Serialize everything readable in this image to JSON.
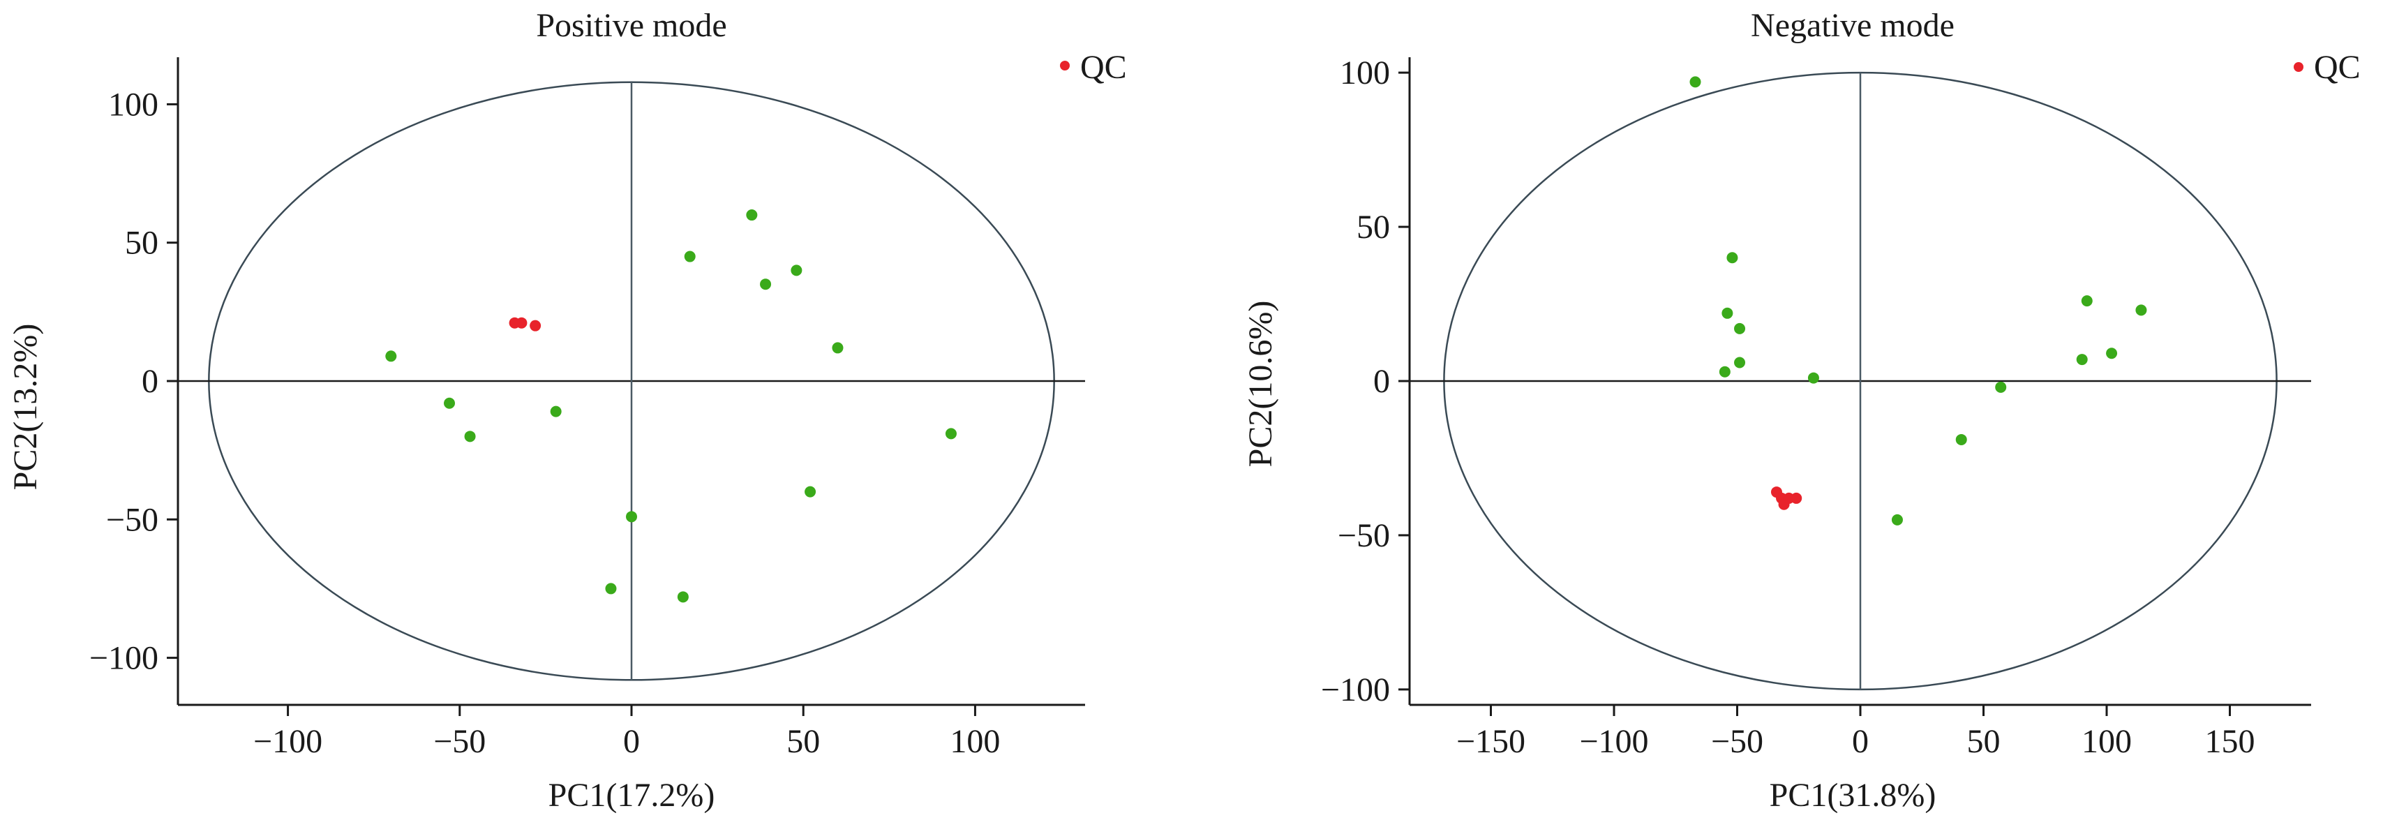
{
  "colors": {
    "qc": "#e8232b",
    "sample": "#3aaa1a",
    "axis": "#1a1a1a",
    "ellipse": "#3a4a55",
    "crosshair": "#4a5a65"
  },
  "chart_data": [
    {
      "type": "scatter",
      "title": "Positive mode",
      "xlabel": "PC1(17.2%)",
      "ylabel": "PC2(13.2%)",
      "xlim": [
        -132,
        132
      ],
      "ylim": [
        -117,
        117
      ],
      "xticks": [
        -100,
        -50,
        0,
        50,
        100
      ],
      "yticks": [
        -100,
        -50,
        0,
        50,
        100
      ],
      "xtick_labels": [
        "−100",
        "−50",
        "0",
        "50",
        "100"
      ],
      "ytick_labels": [
        "−100",
        "−50",
        "0",
        "50",
        "100"
      ],
      "legend": {
        "label": "QC",
        "placement": "top-right"
      },
      "ellipse": {
        "cx": 0,
        "cy": 0,
        "rx": 123,
        "ry": 108
      },
      "grid": false,
      "series": [
        {
          "name": "QC",
          "color_key": "qc",
          "points": [
            [
              -34,
              21
            ],
            [
              -32,
              21
            ],
            [
              -28,
              20
            ]
          ]
        },
        {
          "color_key": "sample",
          "points": [
            [
              -70,
              9
            ],
            [
              -53,
              -8
            ],
            [
              -47,
              -20
            ],
            [
              -22,
              -11
            ],
            [
              -6,
              -75
            ],
            [
              0,
              -49
            ],
            [
              15,
              -78
            ],
            [
              17,
              45
            ],
            [
              35,
              60
            ],
            [
              39,
              35
            ],
            [
              48,
              40
            ],
            [
              52,
              -40
            ],
            [
              60,
              12
            ],
            [
              93,
              -19
            ]
          ]
        }
      ]
    },
    {
      "type": "scatter",
      "title": "Negative mode",
      "xlabel": "PC1(31.8%)",
      "ylabel": "PC2(10.6%)",
      "xlim": [
        -183,
        183
      ],
      "ylim": [
        -105,
        105
      ],
      "xticks": [
        -150,
        -100,
        -50,
        0,
        50,
        100,
        150
      ],
      "yticks": [
        -100,
        -50,
        0,
        50,
        100
      ],
      "xtick_labels": [
        "−150",
        "−100",
        "−50",
        "0",
        "50",
        "100",
        "150"
      ],
      "ytick_labels": [
        "−100",
        "−50",
        "0",
        "50",
        "100"
      ],
      "legend": {
        "label": "QC",
        "placement": "top-right"
      },
      "ellipse": {
        "cx": 0,
        "cy": 0,
        "rx": 169,
        "ry": 100
      },
      "grid": false,
      "series": [
        {
          "name": "QC",
          "color_key": "qc",
          "points": [
            [
              -34,
              -36
            ],
            [
              -32,
              -38
            ],
            [
              -31,
              -40
            ],
            [
              -29,
              -38
            ],
            [
              -26,
              -38
            ]
          ]
        },
        {
          "color_key": "sample",
          "points": [
            [
              -67,
              97
            ],
            [
              -52,
              40
            ],
            [
              -54,
              22
            ],
            [
              -49,
              17
            ],
            [
              -55,
              3
            ],
            [
              -49,
              6
            ],
            [
              -19,
              1
            ],
            [
              15,
              -45
            ],
            [
              41,
              -19
            ],
            [
              57,
              -2
            ],
            [
              90,
              7
            ],
            [
              92,
              26
            ],
            [
              102,
              9
            ],
            [
              114,
              23
            ]
          ]
        }
      ]
    }
  ]
}
